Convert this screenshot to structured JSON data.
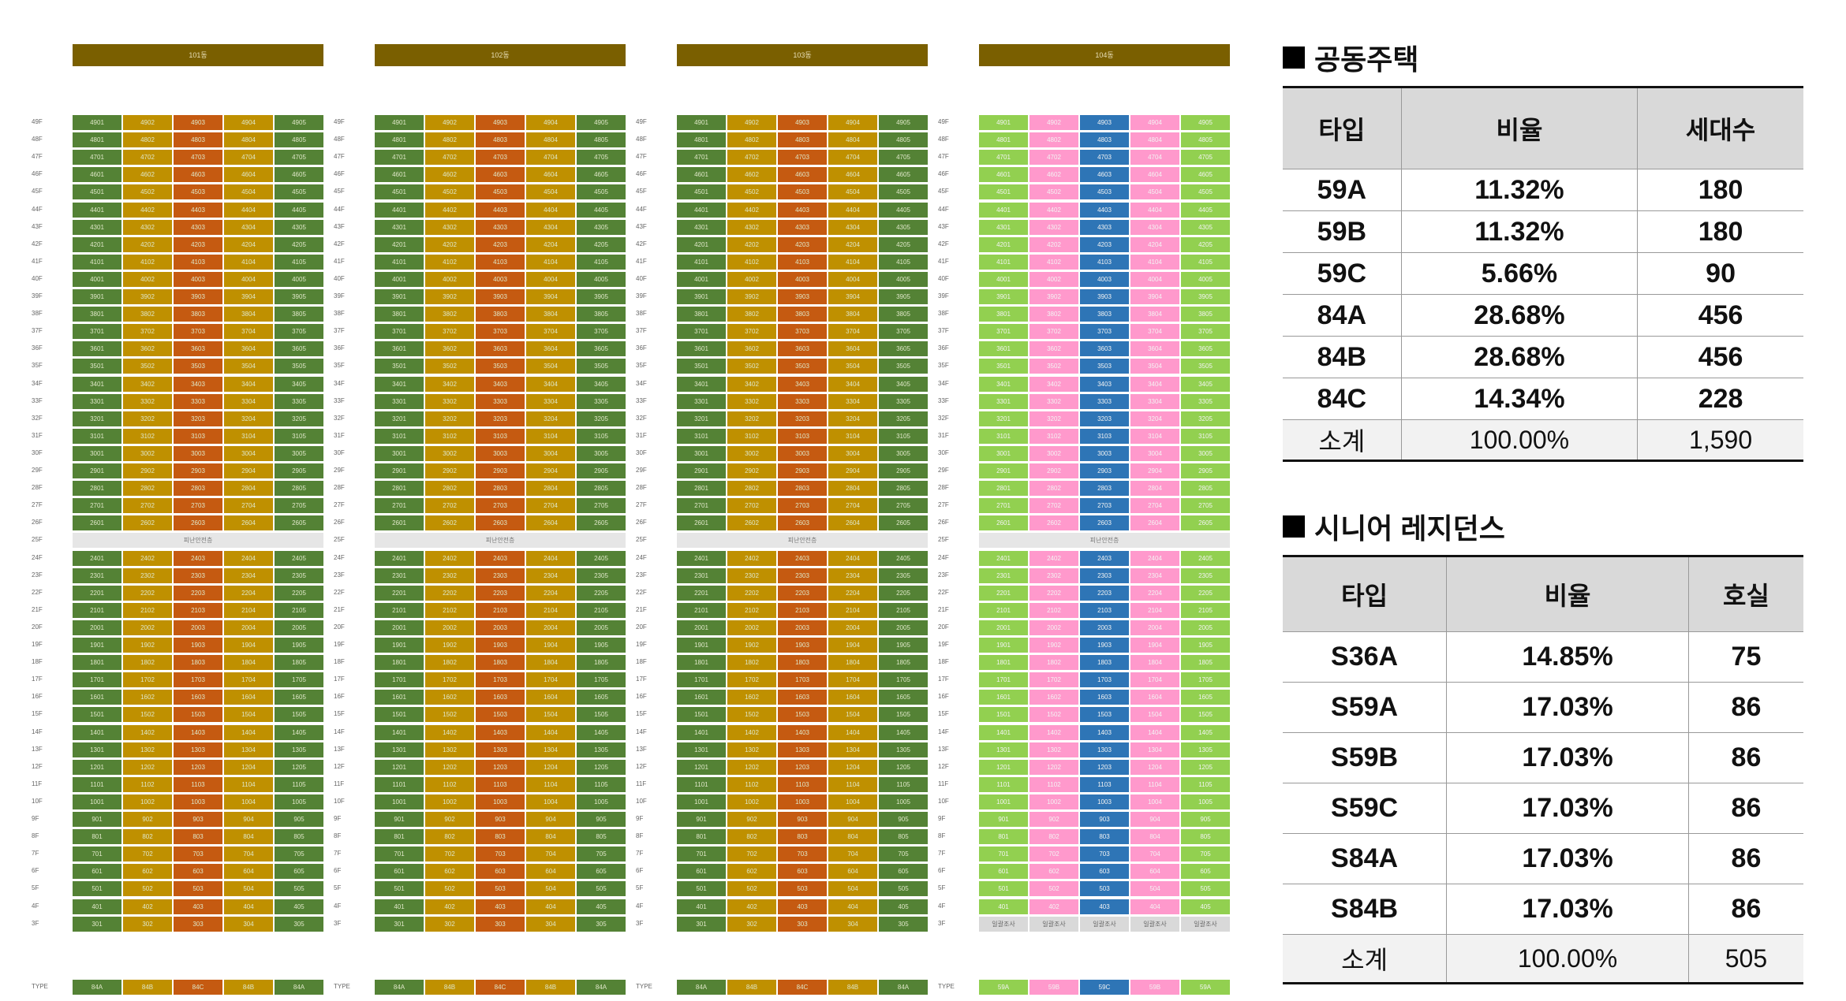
{
  "buildings": [
    {
      "name": "101동",
      "types": [
        "84A",
        "84B",
        "84C",
        "84B",
        "84A"
      ],
      "colors": [
        "#548235",
        "#bf9000",
        "#c55a11",
        "#bf9000",
        "#548235"
      ],
      "text_color": "#dfe7c8",
      "groundfloor_label": "일괄조사",
      "show_ground": false
    },
    {
      "name": "102동",
      "types": [
        "84A",
        "84B",
        "84C",
        "84B",
        "84A"
      ],
      "colors": [
        "#548235",
        "#bf9000",
        "#c55a11",
        "#bf9000",
        "#548235"
      ],
      "text_color": "#dfe7c8",
      "groundfloor_label": "",
      "show_ground": false
    },
    {
      "name": "103동",
      "types": [
        "84A",
        "84B",
        "84C",
        "84B",
        "84A"
      ],
      "colors": [
        "#548235",
        "#bf9000",
        "#c55a11",
        "#bf9000",
        "#548235"
      ],
      "text_color": "#dfe7c8",
      "groundfloor_label": "",
      "show_ground": false
    },
    {
      "name": "104동",
      "types": [
        "59A",
        "59B",
        "59C",
        "59B",
        "59A"
      ],
      "colors": [
        "#92d050",
        "#ff99cc",
        "#2e75b6",
        "#ff99cc",
        "#92d050"
      ],
      "text_color": "#f3f3f3",
      "groundfloor_label": "일괄조사",
      "show_ground": true
    }
  ],
  "refuge_label": "피난안전층",
  "type_row_label": "TYPE",
  "colors": {
    "header_bg": "#7a5f00",
    "refuge_bg": "#e6e6e6"
  },
  "apartments": {
    "title": "공동주택",
    "headers": [
      "타입",
      "비율",
      "세대수"
    ],
    "rows": [
      [
        "59A",
        "11.32%",
        "180"
      ],
      [
        "59B",
        "11.32%",
        "180"
      ],
      [
        "59C",
        "5.66%",
        "90"
      ],
      [
        "84A",
        "28.68%",
        "456"
      ],
      [
        "84B",
        "28.68%",
        "456"
      ],
      [
        "84C",
        "14.34%",
        "228"
      ]
    ],
    "subtotal": [
      "소계",
      "100.00%",
      "1,590"
    ]
  },
  "senior": {
    "title": "시니어 레지던스",
    "headers": [
      "타입",
      "비율",
      "호실"
    ],
    "rows": [
      [
        "S36A",
        "14.85%",
        "75"
      ],
      [
        "S59A",
        "17.03%",
        "86"
      ],
      [
        "S59B",
        "17.03%",
        "86"
      ],
      [
        "S59C",
        "17.03%",
        "86"
      ],
      [
        "S84A",
        "17.03%",
        "86"
      ],
      [
        "S84B",
        "17.03%",
        "86"
      ]
    ],
    "subtotal": [
      "소계",
      "100.00%",
      "505"
    ]
  }
}
